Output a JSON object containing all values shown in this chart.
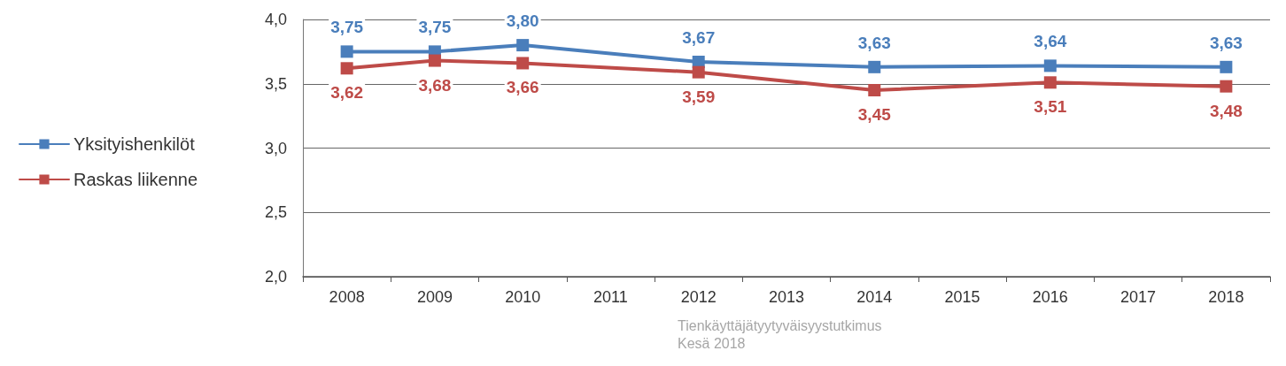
{
  "chart_data": {
    "type": "line",
    "categories": [
      "2008",
      "2009",
      "2010",
      "2011",
      "2012",
      "2013",
      "2014",
      "2015",
      "2016",
      "2017",
      "2018"
    ],
    "series": [
      {
        "name": "Yksityishenkilöt",
        "color": "#4a7ebb",
        "values": [
          3.75,
          3.75,
          3.8,
          null,
          3.67,
          null,
          3.63,
          null,
          3.64,
          null,
          3.63
        ],
        "value_labels": [
          "3,75",
          "3,75",
          "3,80",
          null,
          "3,67",
          null,
          "3,63",
          null,
          "3,64",
          null,
          "3,63"
        ]
      },
      {
        "name": "Raskas liikenne",
        "color": "#be4b48",
        "values": [
          3.62,
          3.68,
          3.66,
          null,
          3.59,
          null,
          3.45,
          null,
          3.51,
          null,
          3.48
        ],
        "value_labels": [
          "3,62",
          "3,68",
          "3,66",
          null,
          "3,59",
          null,
          "3,45",
          null,
          "3,51",
          null,
          "3,48"
        ]
      }
    ],
    "ylim": [
      2.0,
      4.0
    ],
    "yticks": [
      {
        "value": 2.0,
        "label": "2,0"
      },
      {
        "value": 2.5,
        "label": "2,5"
      },
      {
        "value": 3.0,
        "label": "3,0"
      },
      {
        "value": 3.5,
        "label": "3,5"
      },
      {
        "value": 4.0,
        "label": "4,0"
      }
    ],
    "grid": "y",
    "legend": "left",
    "marker": "square",
    "line_style": "solid",
    "annotations": [
      "Tienkäyttäjätyytyväisyystutkimus",
      "Kesä 2018"
    ]
  }
}
